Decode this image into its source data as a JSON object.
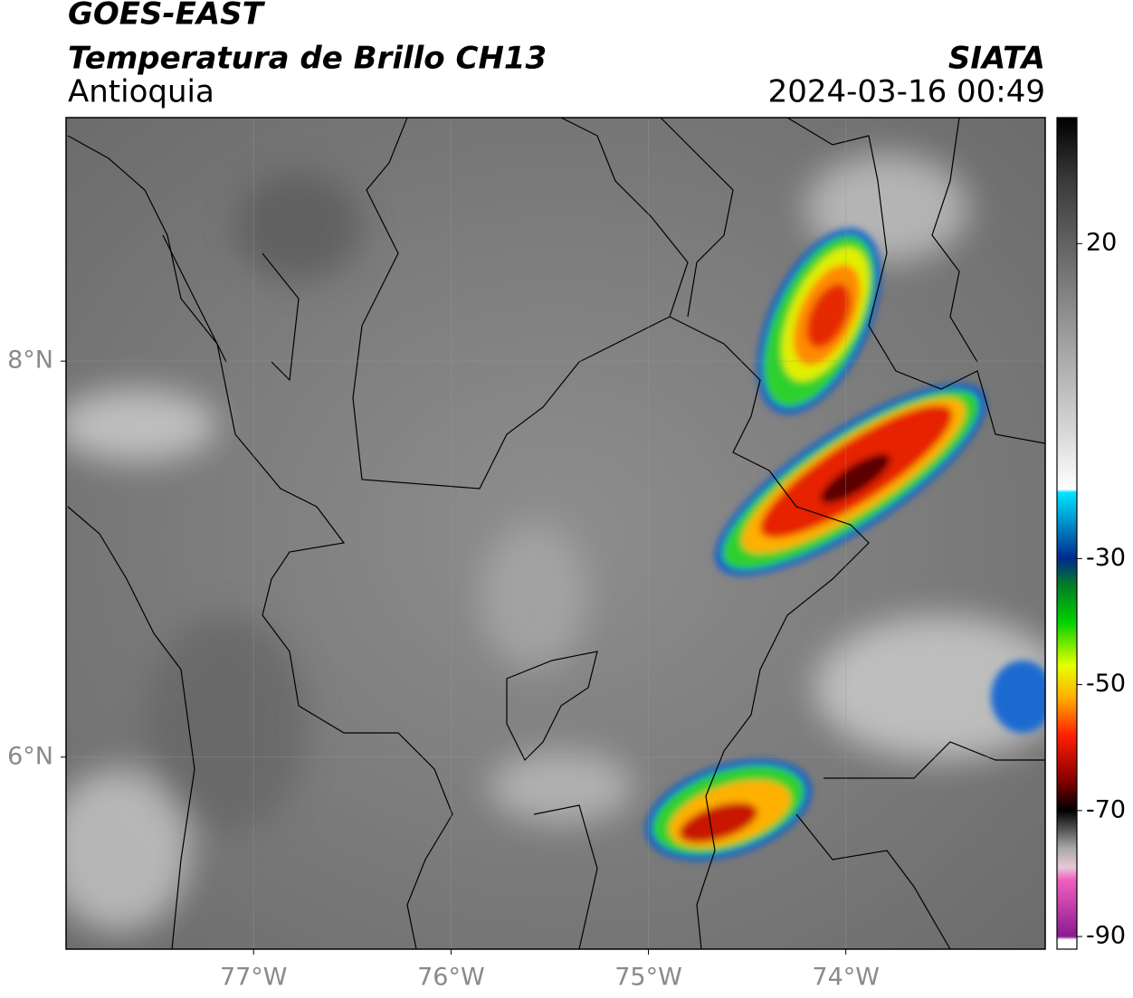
{
  "chart_data": {
    "type": "map",
    "title": "GOES-EAST",
    "subtitle": "Temperatura de Brillo CH13",
    "region": "Antioquia",
    "source": "SIATA",
    "timestamp": "2024-03-16 00:49",
    "xlim": [
      -77.95,
      -72.99
    ],
    "ylim": [
      5.03,
      9.23
    ],
    "xticks": [
      {
        "value": -77,
        "label": "77°W"
      },
      {
        "value": -76,
        "label": "76°W"
      },
      {
        "value": -75,
        "label": "75°W"
      },
      {
        "value": -74,
        "label": "74°W"
      }
    ],
    "yticks": [
      {
        "value": 6,
        "label": "6°N"
      },
      {
        "value": 8,
        "label": "8°N"
      }
    ],
    "grid": true,
    "colorbar": {
      "clim": [
        -92,
        40
      ],
      "ticks": [
        20,
        -30,
        -50,
        -70,
        -90
      ],
      "colormap": [
        {
          "value": 40,
          "color": "#000000"
        },
        {
          "value": 30,
          "color": "#3a3a3a"
        },
        {
          "value": 10,
          "color": "#8a8a8a"
        },
        {
          "value": -10,
          "color": "#d8d8d8"
        },
        {
          "value": -19,
          "color": "#ffffff"
        },
        {
          "value": -19.5,
          "color": "#00e5ff"
        },
        {
          "value": -30,
          "color": "#002a8c"
        },
        {
          "value": -34,
          "color": "#007a2a"
        },
        {
          "value": -40,
          "color": "#00d000"
        },
        {
          "value": -47,
          "color": "#e6ff00"
        },
        {
          "value": -52,
          "color": "#ffb000"
        },
        {
          "value": -58,
          "color": "#ff2000"
        },
        {
          "value": -65,
          "color": "#8a0000"
        },
        {
          "value": -70,
          "color": "#000000"
        },
        {
          "value": -76,
          "color": "#a8a8a8"
        },
        {
          "value": -79,
          "color": "#e8c8d8"
        },
        {
          "value": -81,
          "color": "#f060c0"
        },
        {
          "value": -90,
          "color": "#8a1a90"
        },
        {
          "value": -90.5,
          "color": "#ffffff"
        },
        {
          "value": -92,
          "color": "#ffffff"
        }
      ]
    }
  }
}
